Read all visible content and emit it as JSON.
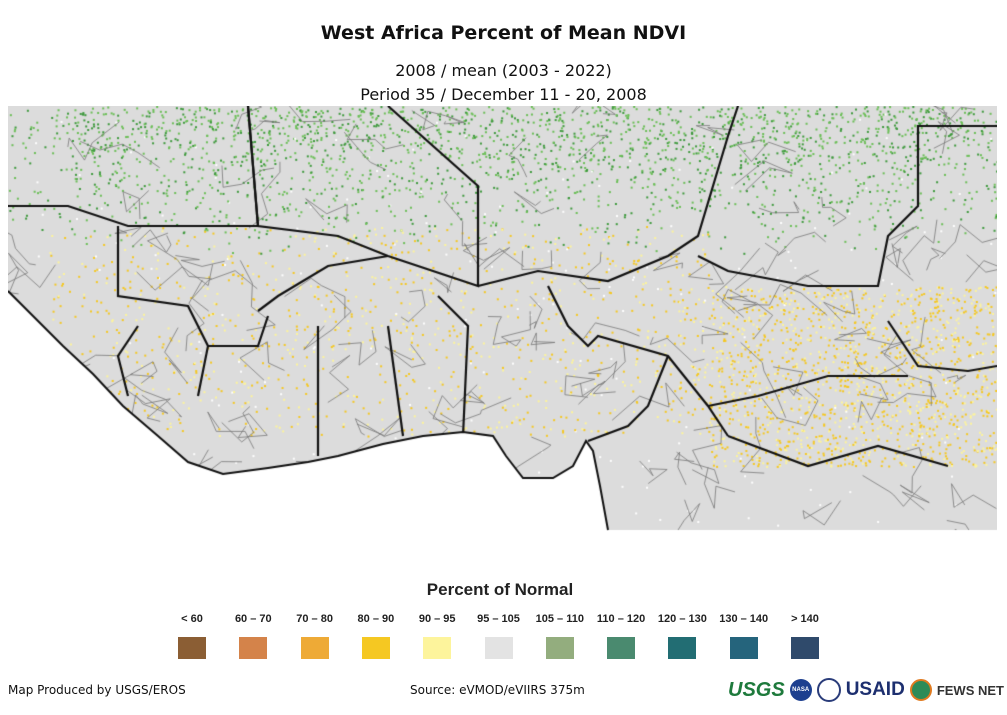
{
  "title": "West Africa Percent of Mean NDVI",
  "subtitle1": "2008 / mean (2003 - 2022)",
  "subtitle2": "Period 35 / December 11 - 20, 2008",
  "legend": {
    "title": "Percent of Normal",
    "items": [
      {
        "label": "< 60",
        "color": "#8b5e34"
      },
      {
        "label": "60 – 70",
        "color": "#d4834a"
      },
      {
        "label": "70 – 80",
        "color": "#eeaa36"
      },
      {
        "label": "80 – 90",
        "color": "#f5c822"
      },
      {
        "label": "90 – 95",
        "color": "#fdf49c"
      },
      {
        "label": "95 – 105",
        "color": "#e3e3e3"
      },
      {
        "label": "105 – 110",
        "color": "#93ad7e"
      },
      {
        "label": "110 – 120",
        "color": "#4a8a6f"
      },
      {
        "label": "120 – 130",
        "color": "#226d73"
      },
      {
        "label": "130 – 140",
        "color": "#25647c"
      },
      {
        "label": "> 140",
        "color": "#2f4a6b"
      }
    ]
  },
  "footer": {
    "credit": "Map Produced by USGS/EROS",
    "source": "Source: eVMOD/eVIIRS 375m"
  },
  "logos": [
    "USGS",
    "NASA",
    "USAID",
    "FEWS NET"
  ]
}
